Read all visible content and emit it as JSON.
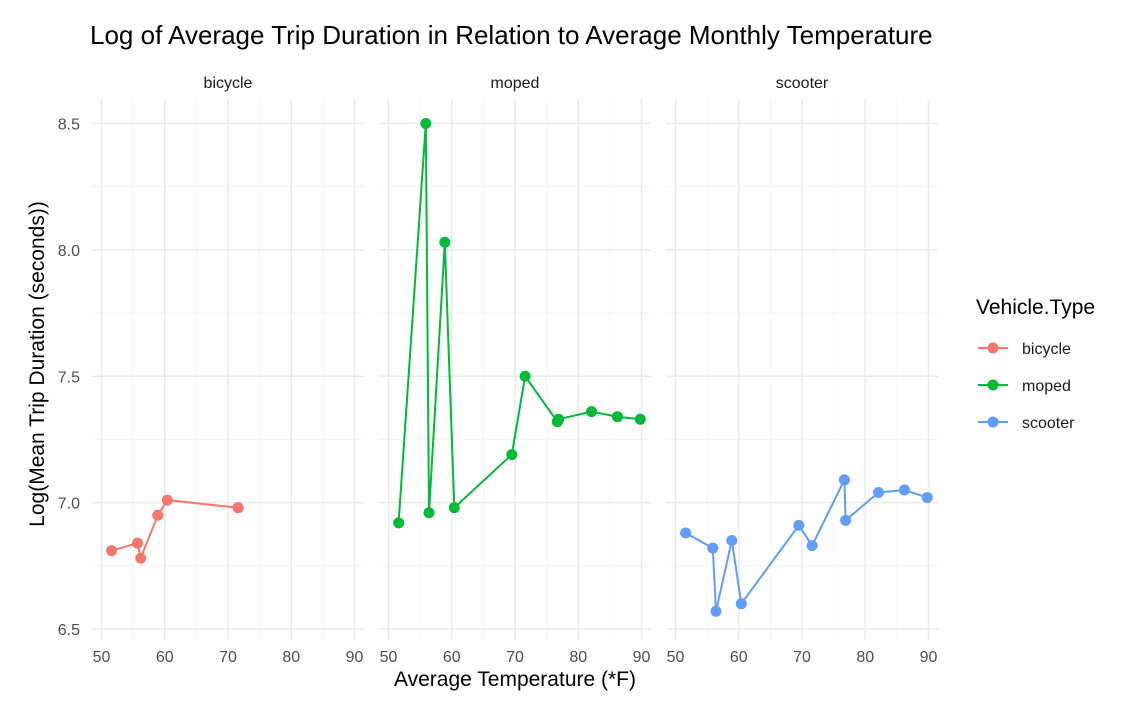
{
  "chart_data": {
    "type": "line",
    "title": "Log of Average Trip Duration in Relation to Average Monthly Temperature",
    "xlabel": "Average Temperature (*F)",
    "ylabel": "Log(Mean Trip Duration (seconds))",
    "xlim": [
      50,
      91
    ],
    "ylim": [
      6.5,
      8.6
    ],
    "x_ticks": [
      "50",
      "60",
      "70",
      "80",
      "90"
    ],
    "y_ticks": [
      "6.5",
      "7.0",
      "7.5",
      "8.0",
      "8.5"
    ],
    "grid": true,
    "legend_title": "Vehicle.Type",
    "legend_position": "right",
    "facets": [
      "bicycle",
      "moped",
      "scooter"
    ],
    "series": [
      {
        "name": "bicycle",
        "color": "#F8766D",
        "points": [
          {
            "x": 51.6,
            "y": 6.81
          },
          {
            "x": 55.7,
            "y": 6.84
          },
          {
            "x": 56.2,
            "y": 6.78
          },
          {
            "x": 58.9,
            "y": 6.95
          },
          {
            "x": 60.4,
            "y": 7.01
          },
          {
            "x": 71.6,
            "y": 6.98
          }
        ]
      },
      {
        "name": "moped",
        "color": "#00BA38",
        "points": [
          {
            "x": 51.6,
            "y": 6.92
          },
          {
            "x": 55.9,
            "y": 8.5
          },
          {
            "x": 56.4,
            "y": 6.96
          },
          {
            "x": 58.9,
            "y": 8.03
          },
          {
            "x": 60.4,
            "y": 6.98
          },
          {
            "x": 69.5,
            "y": 7.19
          },
          {
            "x": 71.6,
            "y": 7.5
          },
          {
            "x": 76.7,
            "y": 7.32
          },
          {
            "x": 76.9,
            "y": 7.33
          },
          {
            "x": 82.1,
            "y": 7.36
          },
          {
            "x": 86.2,
            "y": 7.34
          },
          {
            "x": 89.8,
            "y": 7.33
          }
        ]
      },
      {
        "name": "scooter",
        "color": "#619CFF",
        "points": [
          {
            "x": 51.6,
            "y": 6.88
          },
          {
            "x": 55.9,
            "y": 6.82
          },
          {
            "x": 56.4,
            "y": 6.57
          },
          {
            "x": 58.9,
            "y": 6.85
          },
          {
            "x": 60.4,
            "y": 6.6
          },
          {
            "x": 69.5,
            "y": 6.91
          },
          {
            "x": 71.6,
            "y": 6.83
          },
          {
            "x": 76.7,
            "y": 7.09
          },
          {
            "x": 76.9,
            "y": 6.93
          },
          {
            "x": 82.1,
            "y": 7.04
          },
          {
            "x": 86.2,
            "y": 7.05
          },
          {
            "x": 89.8,
            "y": 7.02
          }
        ]
      }
    ]
  }
}
